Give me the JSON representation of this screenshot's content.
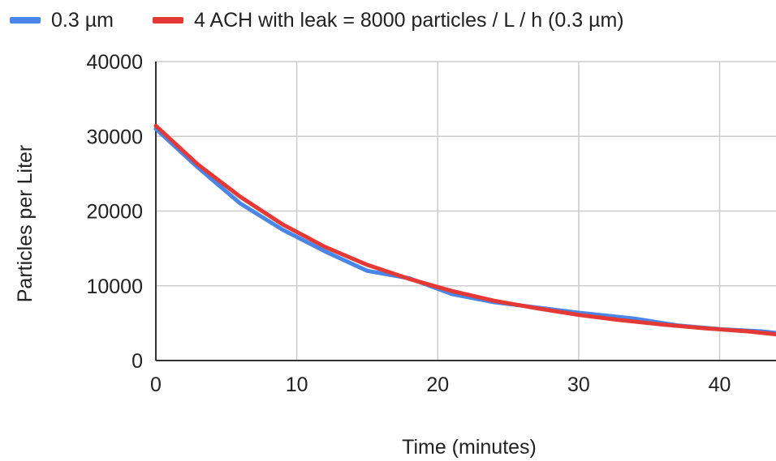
{
  "chart_data": {
    "type": "line",
    "title": "",
    "xlabel": "Time (minutes)",
    "ylabel": "Particles per Liter",
    "xlim": [
      0,
      44
    ],
    "ylim": [
      0,
      40000
    ],
    "xticks": [
      0,
      10,
      20,
      30,
      40
    ],
    "yticks": [
      0,
      10000,
      20000,
      30000,
      40000
    ],
    "grid": true,
    "legend_position": "top-left",
    "series": [
      {
        "name": "0.3 µm",
        "color": "#4a86e8",
        "x": [
          0,
          3,
          6,
          9,
          12,
          15,
          18,
          21,
          24,
          27,
          30,
          34,
          37,
          40,
          43,
          44
        ],
        "y": [
          31000,
          25800,
          21000,
          17500,
          14600,
          12000,
          11000,
          8900,
          7800,
          7100,
          6400,
          5600,
          4700,
          4200,
          3900,
          3700
        ]
      },
      {
        "name": "4 ACH with leak = 8000 particles / L / h (0.3 µm)",
        "color": "#e53935",
        "x": [
          0,
          3,
          6,
          9,
          12,
          15,
          18,
          21,
          24,
          27,
          30,
          33,
          36,
          39,
          42,
          44
        ],
        "y": [
          31400,
          26200,
          21900,
          18200,
          15200,
          12800,
          10900,
          9300,
          8000,
          7000,
          6100,
          5400,
          4800,
          4300,
          3900,
          3500
        ]
      }
    ]
  }
}
